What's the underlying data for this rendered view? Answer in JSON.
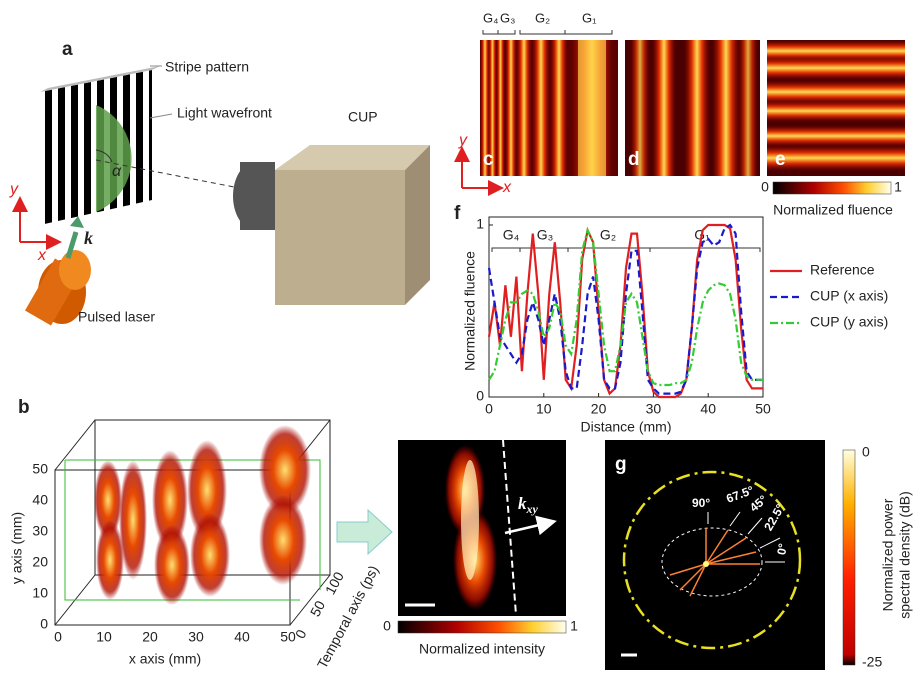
{
  "panels": {
    "a": {
      "label": "a",
      "stripe_pattern": "Stripe pattern",
      "light_wavefront": "Light wavefront",
      "cup": "CUP",
      "pulsed_laser": "Pulsed laser",
      "alpha": "α",
      "k": "k",
      "axis_x": "x",
      "axis_y": "y"
    },
    "b": {
      "label": "b",
      "y_axis_label": "y axis (mm)",
      "x_axis_label": "x axis (mm)",
      "t_axis_label": "Temporal axis (ps)",
      "yticks": [
        0,
        10,
        20,
        30,
        40,
        50
      ],
      "xticks": [
        0,
        10,
        20,
        30,
        40,
        50
      ],
      "tticks": [
        0,
        50,
        100
      ],
      "k_label": {
        "base": "k",
        "sub": "xy"
      },
      "colorbar": {
        "min": 0,
        "max": 1,
        "label": "Normalized intensity"
      }
    },
    "c": {
      "label": "c",
      "groups": [
        "G₄",
        "G₃",
        "G₂",
        "G₁"
      ],
      "axis_x": "x",
      "axis_y": "y"
    },
    "d": {
      "label": "d"
    },
    "e": {
      "label": "e",
      "colorbar": {
        "min": 0,
        "max": 1,
        "label": "Normalized fluence"
      }
    },
    "f": {
      "label": "f",
      "groups": [
        "G₄",
        "G₃",
        "G₂",
        "G₁"
      ]
    },
    "g": {
      "label": "g",
      "angles": [
        "90°",
        "67.5°",
        "45°",
        "22.5°",
        "0°"
      ],
      "colorbar": {
        "max": 0,
        "min": -25,
        "label_lines": [
          "Normalized power",
          "spectral density (dB)"
        ]
      }
    }
  },
  "chart_data": {
    "type": "line",
    "x_label": "Distance (mm)",
    "y_label": "Normalized fluence",
    "x": [
      0,
      1,
      2,
      3,
      4,
      5,
      6,
      7,
      8,
      9,
      10,
      11,
      12,
      13,
      14,
      15,
      16,
      17,
      18,
      19,
      20,
      21,
      22,
      23,
      24,
      25,
      26,
      27,
      28,
      29,
      30,
      31,
      32,
      33,
      34,
      35,
      36,
      37,
      38,
      39,
      40,
      41,
      42,
      43,
      44,
      45,
      46,
      47,
      48,
      49,
      50
    ],
    "series": [
      {
        "name": "Reference",
        "color": "#e02020",
        "dash": "solid",
        "values": [
          0.35,
          0.55,
          0.3,
          0.65,
          0.35,
          0.7,
          0.15,
          0.6,
          0.95,
          0.6,
          0.1,
          0.6,
          0.9,
          0.55,
          0.1,
          0.05,
          0.3,
          0.8,
          0.97,
          0.9,
          0.5,
          0.1,
          0.02,
          0.05,
          0.3,
          0.75,
          0.95,
          0.95,
          0.6,
          0.15,
          0.03,
          0,
          0,
          0,
          0,
          0.02,
          0.1,
          0.4,
          0.8,
          0.97,
          1,
          1,
          1,
          1,
          0.98,
          0.8,
          0.4,
          0.1,
          0.05,
          0.05,
          0.05
        ]
      },
      {
        "name": "CUP (x axis)",
        "color": "#1a1acc",
        "dash": "dashed",
        "values": [
          0.75,
          0.55,
          0.35,
          0.3,
          0.25,
          0.2,
          0.25,
          0.45,
          0.55,
          0.45,
          0.3,
          0.45,
          0.6,
          0.45,
          0.15,
          0.05,
          0.05,
          0.3,
          0.6,
          0.7,
          0.45,
          0.1,
          0.05,
          0.05,
          0.2,
          0.6,
          0.85,
          0.85,
          0.5,
          0.1,
          0.05,
          0.02,
          0.02,
          0.02,
          0.02,
          0.03,
          0.1,
          0.4,
          0.75,
          0.9,
          0.92,
          0.88,
          0.9,
          0.98,
          1,
          0.95,
          0.5,
          0.15,
          0.1,
          0.1,
          0.1
        ]
      },
      {
        "name": "CUP (y axis)",
        "color": "#33cc33",
        "dash": "dashdot",
        "values": [
          0.1,
          0.15,
          0.3,
          0.45,
          0.55,
          0.55,
          0.6,
          0.62,
          0.6,
          0.5,
          0.35,
          0.4,
          0.55,
          0.5,
          0.3,
          0.25,
          0.45,
          0.85,
          0.97,
          0.9,
          0.6,
          0.3,
          0.15,
          0.15,
          0.3,
          0.55,
          0.6,
          0.55,
          0.35,
          0.15,
          0.08,
          0.07,
          0.07,
          0.07,
          0.08,
          0.08,
          0.1,
          0.2,
          0.4,
          0.55,
          0.62,
          0.65,
          0.66,
          0.65,
          0.6,
          0.45,
          0.2,
          0.12,
          0.1,
          0.1,
          0.1
        ]
      }
    ],
    "xlim": [
      0,
      50
    ],
    "xticks": [
      0,
      10,
      20,
      30,
      40,
      50
    ],
    "ylim": [
      0,
      1
    ],
    "yticks": [
      0,
      1
    ],
    "legend": "right"
  }
}
